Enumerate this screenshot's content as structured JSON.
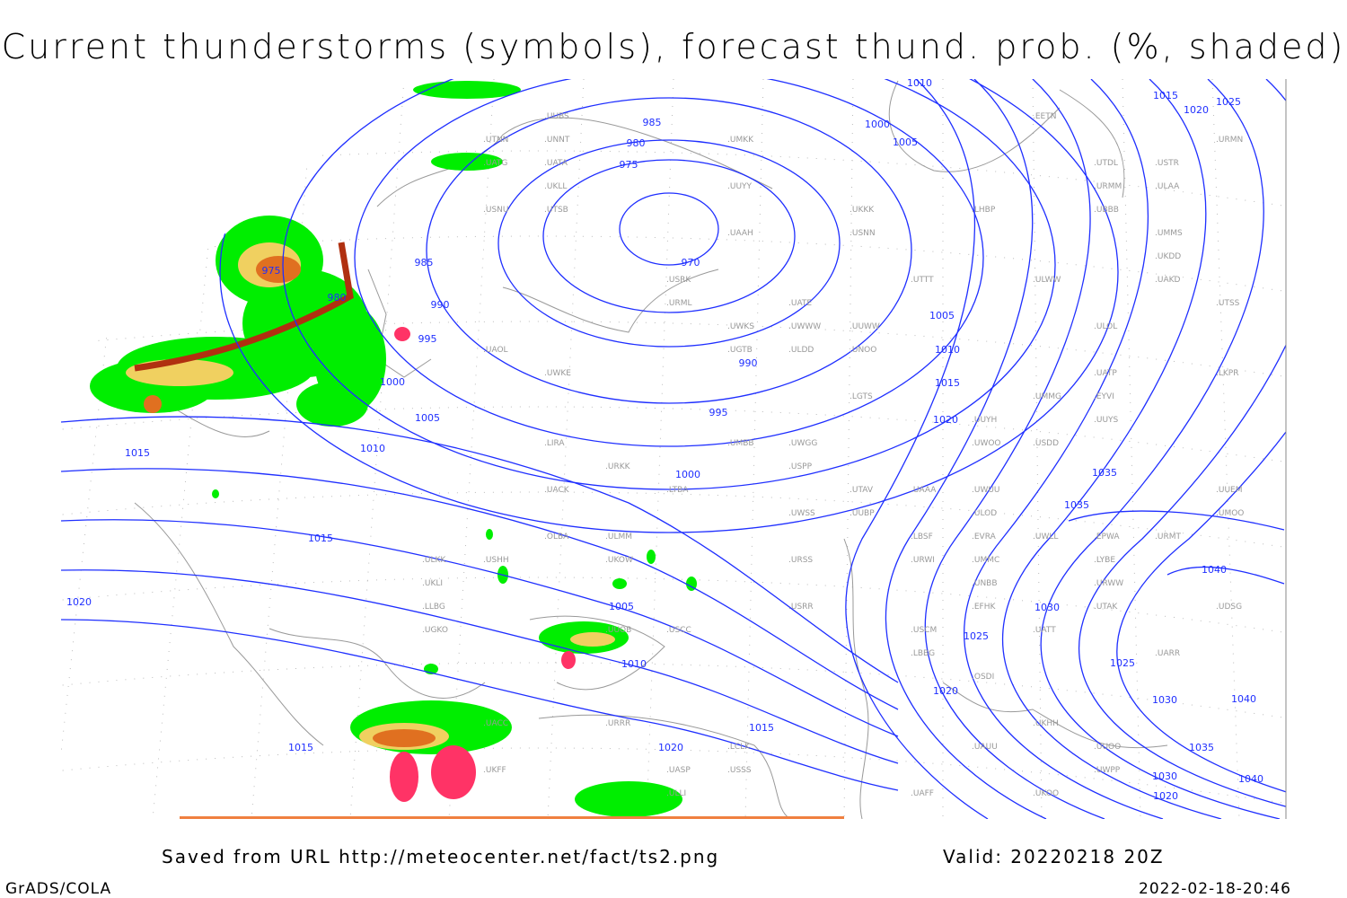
{
  "title": "Current thunderstorms (symbols), forecast thund. prob. (%, shaded)",
  "footer": {
    "source": "Saved from URL http://meteocenter.net/fact/ts2.png",
    "valid": "Valid: 20220218 20Z",
    "software": "GrADS/COLA",
    "timestamp": "2022-02-18-20:46"
  },
  "colors": {
    "isobar": "#1f2fff",
    "coast": "#999999",
    "prob_low": "#00ee00",
    "prob_mid": "#f0d060",
    "prob_high": "#e07020",
    "prob_max": "#b03010",
    "symbols": "#ff3366"
  },
  "isobar_labels": [
    "970",
    "975",
    "980",
    "985",
    "990",
    "995",
    "1000",
    "1005",
    "1010",
    "1015",
    "1020",
    "1025",
    "1030",
    "1035",
    "1040",
    "975",
    "980",
    "985",
    "990",
    "995",
    "1000",
    "1005",
    "1010",
    "1015",
    "1020",
    "1005",
    "1010",
    "1015",
    "1020",
    "1015",
    "1015",
    "1020",
    "1025",
    "1030",
    "1035",
    "1040",
    "1000",
    "1005",
    "1010",
    "1015",
    "1020",
    "1025",
    "1035",
    "1040",
    "1030",
    "1020"
  ],
  "stations": [
    "ULMM",
    "ULAA",
    "ULLI",
    "ULOD",
    "ULOL",
    "ULWW",
    "ULKK",
    "UUYH",
    "UUYS",
    "UUYY",
    "ULDD",
    "USDD",
    "USNU",
    "UUEM",
    "UUWW",
    "UUBS",
    "UMMS",
    "UMOO",
    "UMMG",
    "UUBP",
    "UMKK",
    "EVRA",
    "EFHK",
    "EETN",
    "EYVI",
    "EPWA",
    "UMMC",
    "UMBB",
    "UKLL",
    "UKLI",
    "UKKK",
    "UUOO",
    "UUOB",
    "UKHH",
    "UKDD",
    "UKOO",
    "UKFF",
    "URRR",
    "UKOW",
    "URKK",
    "URMT",
    "URMM",
    "URMN",
    "URSS",
    "UGKO",
    "UGTB",
    "UDSG",
    "UBBB",
    "URML",
    "URWI",
    "URWW",
    "UWWW",
    "UWPP",
    "UWSS",
    "UWKS",
    "UWKE",
    "UWLL",
    "UWGG",
    "UWUU",
    "UWOO",
    "UARR",
    "UATT",
    "UATG",
    "UATA",
    "UAOL",
    "UACC",
    "UAAA",
    "UASP",
    "UAKD",
    "USSS",
    "USTR",
    "USPP",
    "USRR",
    "USNN",
    "USRK",
    "USHH",
    "UNOO",
    "UNNT",
    "UNBB",
    "USCC",
    "USCM",
    "UACK",
    "UAUU",
    "UATE",
    "UATP",
    "UTAK",
    "UTNN",
    "UTAV",
    "UTSB",
    "UTSS",
    "UTDL",
    "UTTT",
    "UAFF",
    "UAAH",
    "LKPR",
    "LHBP",
    "LIRA",
    "LYBE",
    "LBSF",
    "LBBG",
    "LGTS",
    "LTBA",
    "LCLK",
    "OLBA",
    "OSDI",
    "LLBG"
  ],
  "map": {
    "valid_time": "20220218 20Z",
    "field": "forecast thunderstorm probability",
    "contours": "sea level pressure (hPa)"
  }
}
